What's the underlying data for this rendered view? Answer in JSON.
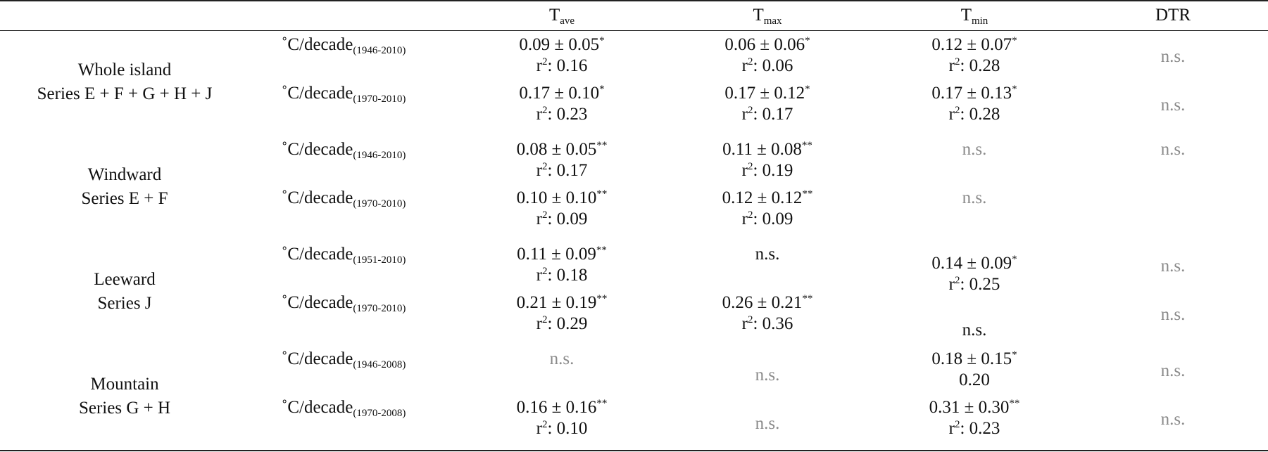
{
  "header": {
    "tave": {
      "base": "T",
      "sub": "ave"
    },
    "tmax": {
      "base": "T",
      "sub": "max"
    },
    "tmin": {
      "base": "T",
      "sub": "min"
    },
    "dtr": "DTR"
  },
  "unit_label": "˚C/decade",
  "groups": [
    {
      "name": "Whole island",
      "series": "Series E + F + G + H + J",
      "periods": [
        "(1946-2010)",
        "(1970-2010)"
      ],
      "cells": [
        {
          "row": 0,
          "col": "tave",
          "val": "0.09 ± 0.05",
          "sig": "*",
          "r2": "0.16"
        },
        {
          "row": 0,
          "col": "tmax",
          "val": "0.06 ± 0.06",
          "sig": "*",
          "r2": "0.06"
        },
        {
          "row": 0,
          "col": "tmin",
          "val": "0.12 ± 0.07",
          "sig": "*",
          "r2": "0.28"
        },
        {
          "row": 0,
          "col": "dtr",
          "ns": "n.s."
        },
        {
          "row": 1,
          "col": "tave",
          "val": "0.17 ± 0.10",
          "sig": "*",
          "r2": "0.23"
        },
        {
          "row": 1,
          "col": "tmax",
          "val": "0.17 ± 0.12",
          "sig": "*",
          "r2": "0.17"
        },
        {
          "row": 1,
          "col": "tmin",
          "val": "0.17 ± 0.13",
          "sig": "*",
          "r2": "0.28"
        },
        {
          "row": 1,
          "col": "dtr",
          "ns": "n.s."
        }
      ]
    },
    {
      "name": "Windward",
      "series": "Series E + F",
      "periods": [
        "(1946-2010)",
        "(1970-2010)"
      ],
      "cells": [
        {
          "row": 0,
          "col": "tave",
          "val": "0.08 ± 0.05",
          "sig": "**",
          "r2": "0.17"
        },
        {
          "row": 0,
          "col": "tmax",
          "val": "0.11 ± 0.08",
          "sig": "**",
          "r2": "0.19"
        },
        {
          "row": 0,
          "col": "tmin",
          "ns": "n.s."
        },
        {
          "row": 0,
          "col": "dtr",
          "ns": "n.s."
        },
        {
          "row": 1,
          "col": "tave",
          "val": "0.10 ± 0.10",
          "sig": "**",
          "r2": "0.09"
        },
        {
          "row": 1,
          "col": "tmax",
          "val": "0.12 ± 0.12",
          "sig": "**",
          "r2": "0.09"
        },
        {
          "row": 1,
          "col": "tmin",
          "ns": "n.s."
        }
      ]
    },
    {
      "name": "Leeward",
      "series": "Series J",
      "periods": [
        "(1951-2010)",
        "(1970-2010)"
      ],
      "cells": [
        {
          "row": 0,
          "col": "tave",
          "val": "0.11 ± 0.09",
          "sig": "**",
          "r2": "0.18"
        },
        {
          "row": 0,
          "col": "tmax",
          "plain": "n.s."
        },
        {
          "row": 0,
          "col": "tmin",
          "val": "0.14 ± 0.09",
          "sig": "*",
          "r2": "0.25"
        },
        {
          "row": 0,
          "col": "dtr",
          "ns": "n.s."
        },
        {
          "row": 1,
          "col": "tave",
          "val": "0.21 ± 0.19",
          "sig": "**",
          "r2": "0.29"
        },
        {
          "row": 1,
          "col": "tmax",
          "val": "0.26 ± 0.21",
          "sig": "**",
          "r2": "0.36"
        },
        {
          "row": 1,
          "col": "tmin",
          "plain": "n.s."
        },
        {
          "row": 1,
          "col": "dtr",
          "ns": "n.s."
        }
      ]
    },
    {
      "name": "Mountain",
      "series": "Series G + H",
      "periods": [
        "(1946-2008)",
        "(1970-2008)"
      ],
      "cells": [
        {
          "row": 0,
          "col": "tave",
          "ns": "n.s."
        },
        {
          "row": 0,
          "col": "tmax",
          "ns": "n.s."
        },
        {
          "row": 0,
          "col": "tmin",
          "val": "0.18 ± 0.15",
          "sig": "*",
          "r2plain": "0.20"
        },
        {
          "row": 0,
          "col": "dtr",
          "ns": "n.s."
        },
        {
          "row": 1,
          "col": "tave",
          "val": "0.16 ± 0.16",
          "sig": "**",
          "r2": "0.10"
        },
        {
          "row": 1,
          "col": "tmax",
          "ns": "n.s."
        },
        {
          "row": 1,
          "col": "tmin",
          "val": "0.31 ± 0.30",
          "sig": "**",
          "r2": "0.23"
        },
        {
          "row": 1,
          "col": "dtr",
          "ns": "n.s."
        }
      ]
    }
  ],
  "r2_prefix": {
    "base": "r",
    "sup": "2",
    "tail": ": "
  }
}
